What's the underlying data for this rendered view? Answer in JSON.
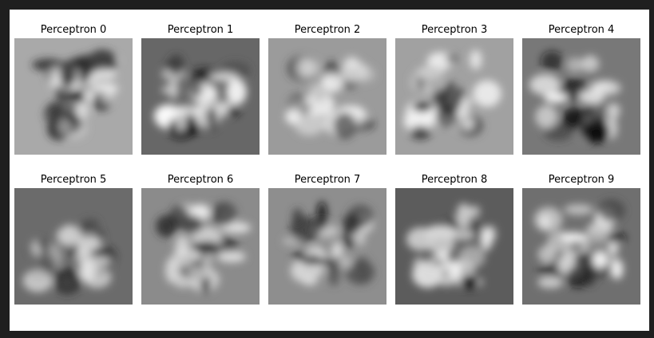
{
  "panels": [
    {
      "title": "Perceptron 0"
    },
    {
      "title": "Perceptron 1"
    },
    {
      "title": "Perceptron 2"
    },
    {
      "title": "Perceptron 3"
    },
    {
      "title": "Perceptron 4"
    },
    {
      "title": "Perceptron 5"
    },
    {
      "title": "Perceptron 6"
    },
    {
      "title": "Perceptron 7"
    },
    {
      "title": "Perceptron 8"
    },
    {
      "title": "Perceptron 9"
    }
  ]
}
